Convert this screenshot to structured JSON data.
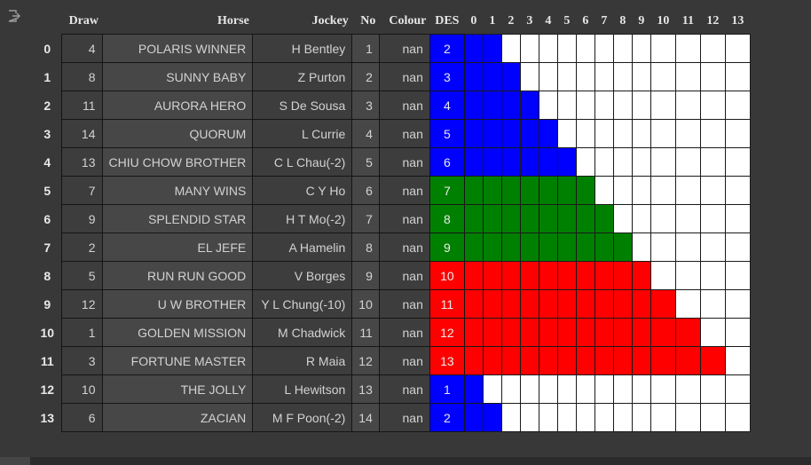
{
  "colors": {
    "blue": "#0000ff",
    "green": "#008000",
    "red": "#ff0000",
    "white": "#ffffff"
  },
  "icons": {
    "output": "output-icon"
  },
  "table": {
    "headers": [
      "Draw",
      "Horse",
      "Jockey",
      "No",
      "Colour",
      "DES",
      "0",
      "1",
      "2",
      "3",
      "4",
      "5",
      "6",
      "7",
      "8",
      "9",
      "10",
      "11",
      "12",
      "13"
    ],
    "rows": [
      {
        "index": "0",
        "draw": "4",
        "horse": "POLARIS WINNER",
        "jockey": "H Bentley",
        "no": "1",
        "colour": "nan",
        "des": "2",
        "group": "blue",
        "fill": 3
      },
      {
        "index": "1",
        "draw": "8",
        "horse": "SUNNY BABY",
        "jockey": "Z Purton",
        "no": "2",
        "colour": "nan",
        "des": "3",
        "group": "blue",
        "fill": 4
      },
      {
        "index": "2",
        "draw": "11",
        "horse": "AURORA HERO",
        "jockey": "S De Sousa",
        "no": "3",
        "colour": "nan",
        "des": "4",
        "group": "blue",
        "fill": 5
      },
      {
        "index": "3",
        "draw": "14",
        "horse": "QUORUM",
        "jockey": "L Currie",
        "no": "4",
        "colour": "nan",
        "des": "5",
        "group": "blue",
        "fill": 6
      },
      {
        "index": "4",
        "draw": "13",
        "horse": "CHIU CHOW BROTHER",
        "jockey": "C L Chau(-2)",
        "no": "5",
        "colour": "nan",
        "des": "6",
        "group": "blue",
        "fill": 7
      },
      {
        "index": "5",
        "draw": "7",
        "horse": "MANY WINS",
        "jockey": "C Y Ho",
        "no": "6",
        "colour": "nan",
        "des": "7",
        "group": "green",
        "fill": 8
      },
      {
        "index": "6",
        "draw": "9",
        "horse": "SPLENDID STAR",
        "jockey": "H T Mo(-2)",
        "no": "7",
        "colour": "nan",
        "des": "8",
        "group": "green",
        "fill": 9
      },
      {
        "index": "7",
        "draw": "2",
        "horse": "EL JEFE",
        "jockey": "A Hamelin",
        "no": "8",
        "colour": "nan",
        "des": "9",
        "group": "green",
        "fill": 10
      },
      {
        "index": "8",
        "draw": "5",
        "horse": "RUN RUN GOOD",
        "jockey": "V Borges",
        "no": "9",
        "colour": "nan",
        "des": "10",
        "group": "red",
        "fill": 11
      },
      {
        "index": "9",
        "draw": "12",
        "horse": "U W BROTHER",
        "jockey": "Y L Chung(-10)",
        "no": "10",
        "colour": "nan",
        "des": "11",
        "group": "red",
        "fill": 12
      },
      {
        "index": "10",
        "draw": "1",
        "horse": "GOLDEN MISSION",
        "jockey": "M Chadwick",
        "no": "11",
        "colour": "nan",
        "des": "12",
        "group": "red",
        "fill": 13
      },
      {
        "index": "11",
        "draw": "3",
        "horse": "FORTUNE MASTER",
        "jockey": "R Maia",
        "no": "12",
        "colour": "nan",
        "des": "13",
        "group": "red",
        "fill": 14
      },
      {
        "index": "12",
        "draw": "10",
        "horse": "THE JOLLY",
        "jockey": "L Hewitson",
        "no": "13",
        "colour": "nan",
        "des": "1",
        "group": "blue",
        "fill": 2
      },
      {
        "index": "13",
        "draw": "6",
        "horse": "ZACIAN",
        "jockey": "M F Poon(-2)",
        "no": "14",
        "colour": "nan",
        "des": "2",
        "group": "blue",
        "fill": 3
      }
    ]
  }
}
